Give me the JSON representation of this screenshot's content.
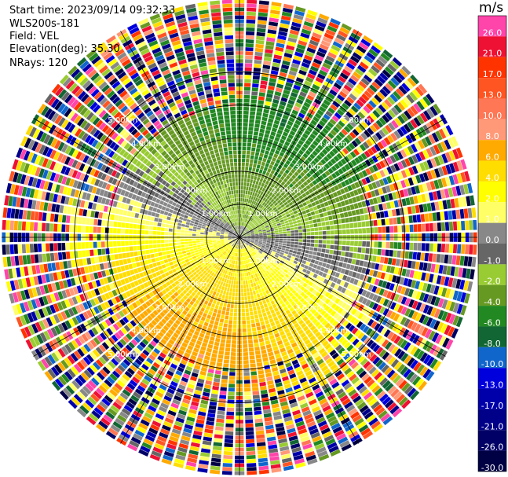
{
  "header": {
    "start_time": "Start time: 2023/09/14 09:32:33",
    "instrument": "WLS200s-181",
    "field": "Field: VEL",
    "elevation": "Elevation(deg): 35.30",
    "nrays": "NRays: 120"
  },
  "colors": {
    "background": "#ffffff",
    "grid": "#000000",
    "ring_label": "#ffffff"
  },
  "chart_data": {
    "type": "polar-heatmap",
    "title": "",
    "field": "VEL",
    "units": "m/s",
    "n_rays": 120,
    "max_range_km": 7.2,
    "range_rings_km": [
      1,
      2,
      3,
      4,
      5
    ],
    "ring_labels": [
      "1.00km",
      "2.00km",
      "3.00km",
      "4.00km",
      "5.00km"
    ],
    "spokes_deg": [
      0,
      30,
      60,
      90,
      120,
      150,
      180,
      210,
      240,
      270,
      300,
      330
    ],
    "colorbar": {
      "ticks": [
        "26.0",
        "21.0",
        "17.0",
        "13.0",
        "10.0",
        "8.0",
        "6.0",
        "4.0",
        "2.0",
        "1.0",
        "0.0",
        "-1.0",
        "-2.0",
        "-4.0",
        "-6.0",
        "-8.0",
        "-10.0",
        "-13.0",
        "-17.0",
        "-21.0",
        "-26.0",
        "-30.0"
      ],
      "colors": [
        "#ff44aa",
        "#ee1133",
        "#ff3300",
        "#ff5522",
        "#ff7755",
        "#ff9977",
        "#ffaa00",
        "#ffdd00",
        "#ffff00",
        "#ffff66",
        "#888888",
        "#666666",
        "#99cc33",
        "#669922",
        "#228822",
        "#116633",
        "#1166cc",
        "#0000dd",
        "#0000aa",
        "#000088",
        "#000066",
        "#000044"
      ]
    }
  }
}
